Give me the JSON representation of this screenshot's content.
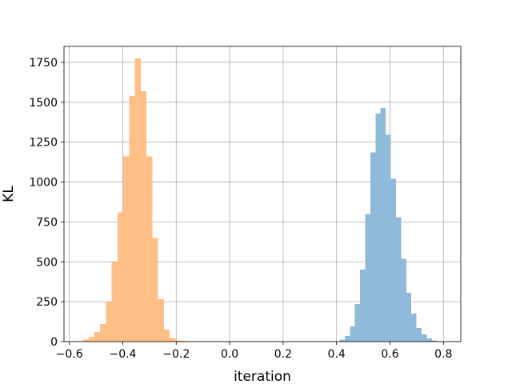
{
  "chart_data": {
    "type": "histogram",
    "title": "",
    "xlabel": "iteration",
    "ylabel": "KL",
    "xlim": [
      -0.62,
      0.865
    ],
    "ylim": [
      0,
      1850
    ],
    "grid": true,
    "xticks": [
      -0.6,
      -0.4,
      -0.2,
      0.0,
      0.2,
      0.4,
      0.6,
      0.8
    ],
    "xtick_labels": [
      "−0.6",
      "−0.4",
      "−0.2",
      "0.0",
      "0.2",
      "0.4",
      "0.6",
      "0.8"
    ],
    "yticks": [
      0,
      250,
      500,
      750,
      1000,
      1250,
      1500,
      1750
    ],
    "ytick_labels": [
      "0",
      "250",
      "500",
      "750",
      "1000",
      "1250",
      "1500",
      "1750"
    ],
    "colors": {
      "series_orange": "#ffbf86",
      "series_blue": "#8fbad9",
      "grid": "#b0b0b0"
    },
    "series": [
      {
        "color": "#ffbf86",
        "bin_width": 0.0217,
        "bins": [
          {
            "x0": -0.55,
            "count": 12
          },
          {
            "x0": -0.5283,
            "count": 30
          },
          {
            "x0": -0.5066,
            "count": 60
          },
          {
            "x0": -0.4849,
            "count": 110
          },
          {
            "x0": -0.4632,
            "count": 250
          },
          {
            "x0": -0.4415,
            "count": 500
          },
          {
            "x0": -0.4198,
            "count": 810
          },
          {
            "x0": -0.3981,
            "count": 1160
          },
          {
            "x0": -0.3764,
            "count": 1540
          },
          {
            "x0": -0.3547,
            "count": 1775
          },
          {
            "x0": -0.333,
            "count": 1570
          },
          {
            "x0": -0.3113,
            "count": 1160
          },
          {
            "x0": -0.2896,
            "count": 650
          },
          {
            "x0": -0.2679,
            "count": 265
          },
          {
            "x0": -0.2462,
            "count": 75
          },
          {
            "x0": -0.2245,
            "count": 22
          },
          {
            "x0": -0.2028,
            "count": 8
          },
          {
            "x0": -0.1811,
            "count": 4
          },
          {
            "x0": -0.1594,
            "count": 2
          },
          {
            "x0": -0.1377,
            "count": 1
          }
        ]
      },
      {
        "color": "#8fbad9",
        "bin_width": 0.0192,
        "bins": [
          {
            "x0": 0.392,
            "count": 3
          },
          {
            "x0": 0.4112,
            "count": 12
          },
          {
            "x0": 0.4304,
            "count": 35
          },
          {
            "x0": 0.4496,
            "count": 95
          },
          {
            "x0": 0.4688,
            "count": 235
          },
          {
            "x0": 0.488,
            "count": 450
          },
          {
            "x0": 0.5072,
            "count": 800
          },
          {
            "x0": 0.5264,
            "count": 1185
          },
          {
            "x0": 0.5456,
            "count": 1430
          },
          {
            "x0": 0.5648,
            "count": 1465
          },
          {
            "x0": 0.584,
            "count": 1295
          },
          {
            "x0": 0.6032,
            "count": 1020
          },
          {
            "x0": 0.6224,
            "count": 780
          },
          {
            "x0": 0.6416,
            "count": 520
          },
          {
            "x0": 0.6608,
            "count": 305
          },
          {
            "x0": 0.68,
            "count": 175
          },
          {
            "x0": 0.6992,
            "count": 85
          },
          {
            "x0": 0.7184,
            "count": 45
          },
          {
            "x0": 0.7376,
            "count": 20
          },
          {
            "x0": 0.7568,
            "count": 8
          },
          {
            "x0": 0.776,
            "count": 3
          },
          {
            "x0": 0.7952,
            "count": 1
          }
        ]
      }
    ]
  }
}
